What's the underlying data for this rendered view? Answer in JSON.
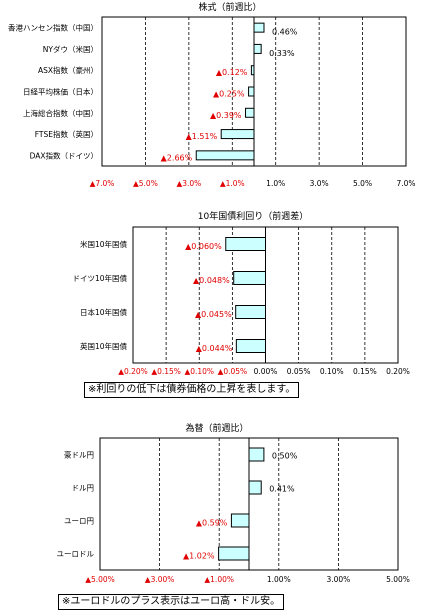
{
  "chart_data": [
    {
      "type": "bar",
      "orientation": "horizontal",
      "title": "株式（前週比）",
      "categories": [
        "香港ハンセン指数（中国）",
        "NYダウ（米国）",
        "ASX指数（豪州）",
        "日経平均株価（日本）",
        "上海総合指数（中国）",
        "FTSE指数（英国）",
        "DAX指数（ドイツ）"
      ],
      "values": [
        0.46,
        0.33,
        -0.12,
        -0.25,
        -0.39,
        -1.51,
        -2.66
      ],
      "value_labels": [
        "0.46%",
        "0.33%",
        "▲0.12%",
        "▲0.25%",
        "▲0.39%",
        "▲1.51%",
        "▲2.66%"
      ],
      "xlim": [
        -7.0,
        7.0
      ],
      "ticks": [
        -7.0,
        -5.0,
        -3.0,
        -1.0,
        1.0,
        3.0,
        5.0,
        7.0
      ],
      "tick_labels": [
        "▲7.0%",
        "▲5.0%",
        "▲3.0%",
        "▲1.0%",
        "1.0%",
        "3.0%",
        "5.0%",
        "7.0%"
      ],
      "grid": true,
      "bar_color": "#ccffff",
      "negative_color": "#e00000"
    },
    {
      "type": "bar",
      "orientation": "horizontal",
      "title": "10年国債利回り（前週差）",
      "categories": [
        "米国10年国債",
        "ドイツ10年国債",
        "日本10年国債",
        "英国10年国債"
      ],
      "values": [
        -0.06,
        -0.048,
        -0.045,
        -0.044
      ],
      "value_labels": [
        "▲0.060%",
        "▲0.048%",
        "▲0.045%",
        "▲0.044%"
      ],
      "xlim": [
        -0.2,
        0.2
      ],
      "ticks": [
        -0.2,
        -0.15,
        -0.1,
        -0.05,
        0.0,
        0.05,
        0.1,
        0.15,
        0.2
      ],
      "tick_labels": [
        "▲0.20%",
        "▲0.15%",
        "▲0.10%",
        "▲0.05%",
        "0.00%",
        "0.05%",
        "0.10%",
        "0.15%",
        "0.20%"
      ],
      "grid": true,
      "bar_color": "#ccffff",
      "negative_color": "#e00000"
    },
    {
      "type": "bar",
      "orientation": "horizontal",
      "title": "為替（前週比）",
      "categories": [
        "豪ドル円",
        "ドル円",
        "ユーロ円",
        "ユーロドル"
      ],
      "values": [
        0.5,
        0.41,
        -0.59,
        -1.02
      ],
      "value_labels": [
        "0.50%",
        "0.41%",
        "▲0.59%",
        "▲1.02%"
      ],
      "xlim": [
        -5.0,
        5.0
      ],
      "ticks": [
        -5.0,
        -3.0,
        -1.0,
        1.0,
        3.0,
        5.0
      ],
      "tick_labels": [
        "▲5.00%",
        "▲3.00%",
        "▲1.00%",
        "1.00%",
        "3.00%",
        "5.00%"
      ],
      "grid": true,
      "bar_color": "#ccffff",
      "negative_color": "#e00000"
    }
  ],
  "notes": {
    "bond": "※利回りの低下は債券価格の上昇を表します。",
    "fx": "※ユーロドルのプラス表示はユーロ高・ドル安。"
  }
}
